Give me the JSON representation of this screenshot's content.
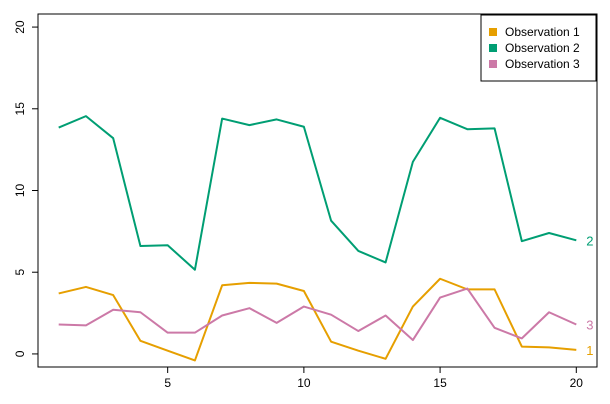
{
  "chart_data": {
    "type": "line",
    "x": [
      1,
      2,
      3,
      4,
      5,
      6,
      7,
      8,
      9,
      10,
      11,
      12,
      13,
      14,
      15,
      16,
      17,
      18,
      19,
      20
    ],
    "series": [
      {
        "name": "Observation 1",
        "end_label": "1",
        "color": "#E69F00",
        "values": [
          3.7,
          4.1,
          3.6,
          0.8,
          0.2,
          -0.4,
          4.2,
          4.35,
          4.3,
          3.85,
          0.75,
          0.2,
          -0.3,
          2.9,
          4.6,
          3.95,
          3.95,
          0.45,
          0.4,
          0.25
        ]
      },
      {
        "name": "Observation 2",
        "end_label": "2",
        "color": "#009E73",
        "values": [
          13.85,
          14.55,
          13.2,
          6.6,
          6.65,
          5.15,
          14.4,
          14.0,
          14.35,
          13.9,
          8.15,
          6.3,
          5.6,
          11.75,
          14.45,
          13.75,
          13.8,
          6.9,
          7.4,
          6.95
        ]
      },
      {
        "name": "Observation 3",
        "end_label": "3",
        "color": "#CC79A7",
        "values": [
          1.8,
          1.75,
          2.7,
          2.55,
          1.3,
          1.3,
          2.35,
          2.8,
          1.9,
          2.9,
          2.4,
          1.4,
          2.35,
          0.85,
          3.45,
          4.0,
          1.6,
          0.95,
          2.55,
          1.8
        ]
      }
    ],
    "x_ticks": [
      5,
      10,
      15,
      20
    ],
    "y_ticks": [
      0,
      5,
      10,
      15,
      20
    ],
    "xlim": [
      0.24,
      20.76
    ],
    "ylim": [
      -0.8,
      20.8
    ],
    "title": "",
    "xlabel": "",
    "ylabel": "",
    "legend": {
      "position": "top-right"
    },
    "grid": false
  }
}
